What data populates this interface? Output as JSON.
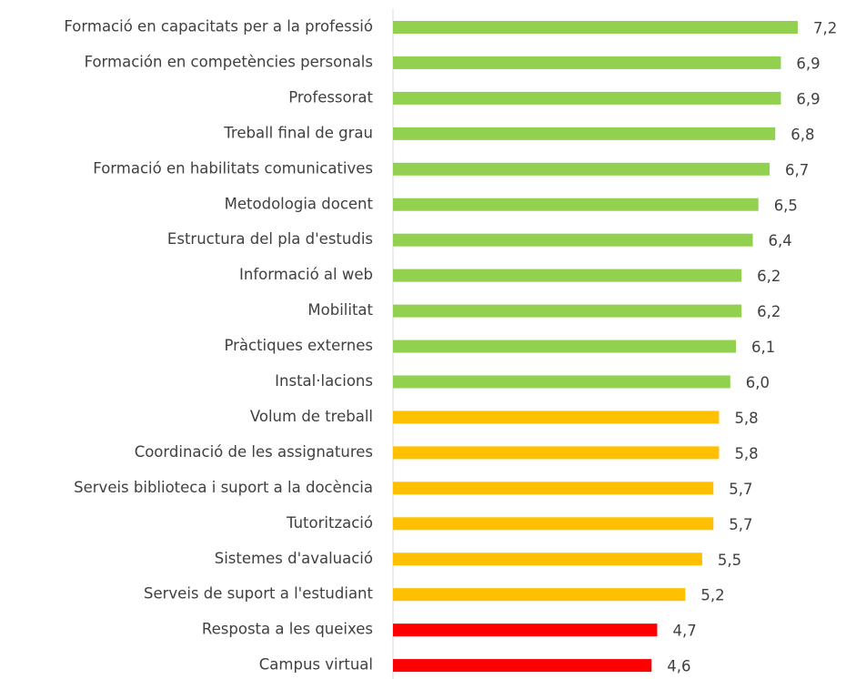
{
  "chart_data": {
    "type": "bar",
    "orientation": "horizontal",
    "categories": [
      "Formació en capacitats per a la professió",
      "Formación en competències personals",
      "Professorat",
      "Treball final de grau",
      "Formació en habilitats comunicatives",
      "Metodologia docent",
      "Estructura del pla d'estudis",
      "Informació al web",
      "Mobilitat",
      "Pràctiques externes",
      "Instal·lacions",
      "Volum de treball",
      "Coordinació de les assignatures",
      "Serveis biblioteca i suport a la docència",
      "Tutorització",
      "Sistemes d'avaluació",
      "Serveis de suport a l'estudiant",
      "Resposta a les queixes",
      "Campus virtual"
    ],
    "values": [
      7.2,
      6.9,
      6.9,
      6.8,
      6.7,
      6.5,
      6.4,
      6.2,
      6.2,
      6.1,
      6.0,
      5.8,
      5.8,
      5.7,
      5.7,
      5.5,
      5.2,
      4.7,
      4.6
    ],
    "value_labels": [
      "7,2",
      "6,9",
      "6,9",
      "6,8",
      "6,7",
      "6,5",
      "6,4",
      "6,2",
      "6,2",
      "6,1",
      "6,0",
      "5,8",
      "5,8",
      "5,7",
      "5,7",
      "5,5",
      "5,2",
      "4,7",
      "4,6"
    ],
    "colors": [
      "#92d050",
      "#92d050",
      "#92d050",
      "#92d050",
      "#92d050",
      "#92d050",
      "#92d050",
      "#92d050",
      "#92d050",
      "#92d050",
      "#92d050",
      "#ffc000",
      "#ffc000",
      "#ffc000",
      "#ffc000",
      "#ffc000",
      "#ffc000",
      "#ff0000",
      "#ff0000"
    ]
  }
}
